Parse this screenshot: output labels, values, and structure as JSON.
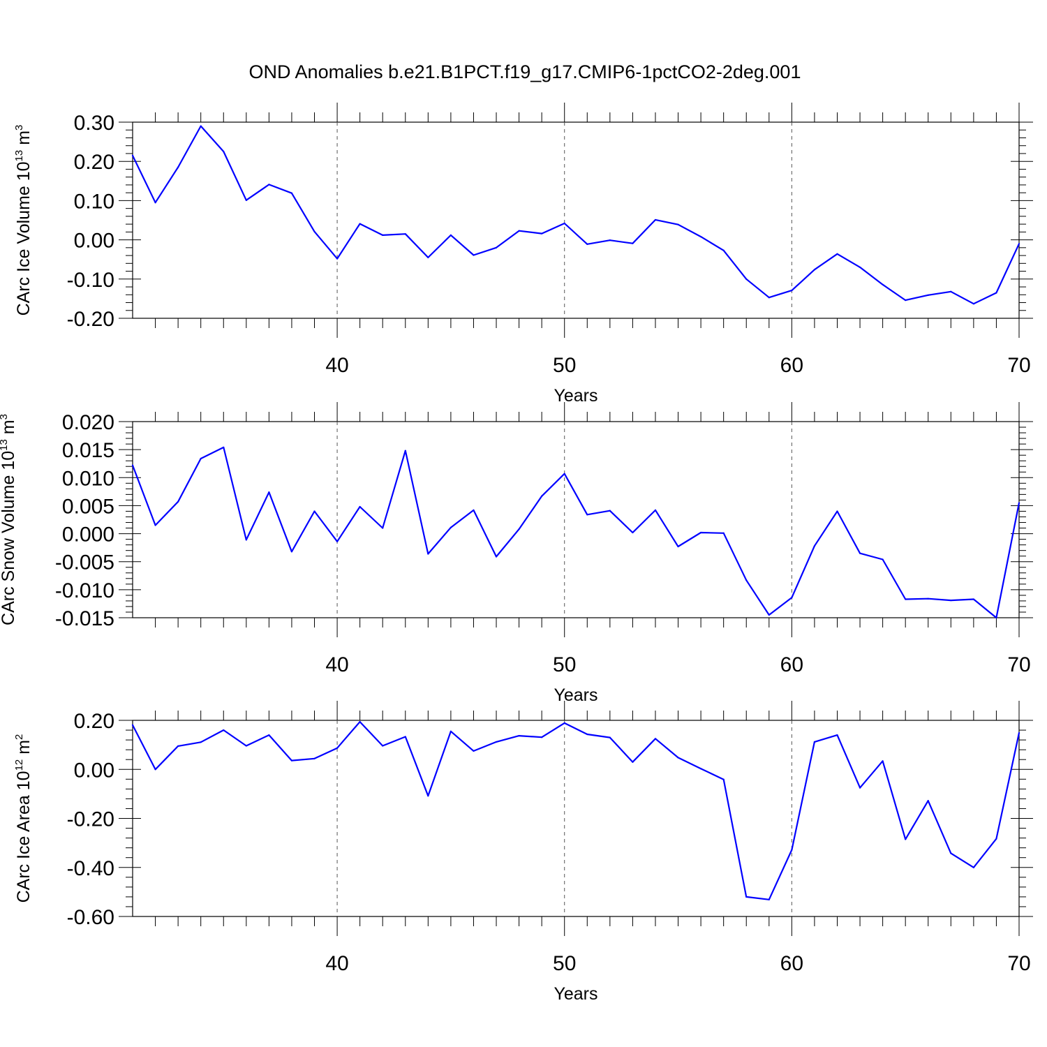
{
  "title": "OND Anomalies b.e21.B1PCT.f19_g17.CMIP6-1pctCO2-2deg.001",
  "line_color": "#0000ff",
  "chart_data": [
    {
      "type": "line",
      "ylabel": "CArc Ice Volume",
      "ylabel_unit": "10",
      "ylabel_exp1": "13",
      "ylabel_unit2": " m",
      "ylabel_exp2": "3",
      "xlabel": "Years",
      "xlim": [
        31,
        70
      ],
      "ylim": [
        -0.2,
        0.3
      ],
      "yticks": [
        -0.2,
        -0.1,
        0.0,
        0.1,
        0.2,
        0.3
      ],
      "ytick_labels": [
        "-0.20",
        "-0.10",
        "0.00",
        "0.10",
        "0.20",
        "0.30"
      ],
      "xticks": [
        40,
        50,
        60,
        70
      ],
      "xtick_labels": [
        "40",
        "50",
        "60",
        "70"
      ],
      "x": [
        31,
        32,
        33,
        34,
        35,
        36,
        37,
        38,
        39,
        40,
        41,
        42,
        43,
        44,
        45,
        46,
        47,
        48,
        49,
        50,
        51,
        52,
        53,
        54,
        55,
        56,
        57,
        58,
        59,
        60,
        61,
        62,
        63,
        64,
        65,
        66,
        67,
        68,
        69,
        70
      ],
      "values": [
        0.215,
        0.095,
        0.185,
        0.29,
        0.225,
        0.101,
        0.141,
        0.119,
        0.021,
        -0.048,
        0.041,
        0.012,
        0.015,
        -0.045,
        0.012,
        -0.039,
        -0.02,
        0.023,
        0.016,
        0.042,
        -0.011,
        -0.001,
        -0.009,
        0.051,
        0.039,
        0.008,
        -0.027,
        -0.1,
        -0.147,
        -0.129,
        -0.076,
        -0.036,
        -0.07,
        -0.114,
        -0.154,
        -0.141,
        -0.132,
        -0.163,
        -0.135,
        -0.01
      ]
    },
    {
      "type": "line",
      "ylabel": "CArc Snow Volume",
      "ylabel_unit": "10",
      "ylabel_exp1": "13",
      "ylabel_unit2": " m",
      "ylabel_exp2": "3",
      "xlabel": "Years",
      "xlim": [
        31,
        70
      ],
      "ylim": [
        -0.015,
        0.02
      ],
      "yticks": [
        -0.015,
        -0.01,
        -0.005,
        0.0,
        0.005,
        0.01,
        0.015,
        0.02
      ],
      "ytick_labels": [
        "-0.015",
        "-0.010",
        "-0.005",
        "0.000",
        "0.005",
        "0.010",
        "0.015",
        "0.020"
      ],
      "xticks": [
        40,
        50,
        60,
        70
      ],
      "xtick_labels": [
        "40",
        "50",
        "60",
        "70"
      ],
      "x": [
        31,
        32,
        33,
        34,
        35,
        36,
        37,
        38,
        39,
        40,
        41,
        42,
        43,
        44,
        45,
        46,
        47,
        48,
        49,
        50,
        51,
        52,
        53,
        54,
        55,
        56,
        57,
        58,
        59,
        60,
        61,
        62,
        63,
        64,
        65,
        66,
        67,
        68,
        69,
        70
      ],
      "values": [
        0.0122,
        0.0015,
        0.0057,
        0.0134,
        0.0154,
        -0.0011,
        0.0074,
        -0.0032,
        0.004,
        -0.0014,
        0.0048,
        0.001,
        0.0148,
        -0.0036,
        0.0011,
        0.0042,
        -0.0041,
        0.0008,
        0.0067,
        0.0107,
        0.0034,
        0.0041,
        0.0002,
        0.0042,
        -0.0023,
        0.0002,
        0.0001,
        -0.0083,
        -0.0145,
        -0.0114,
        -0.0022,
        0.004,
        -0.0035,
        -0.0046,
        -0.0117,
        -0.0116,
        -0.0119,
        -0.0117,
        -0.015,
        0.0055
      ]
    },
    {
      "type": "line",
      "ylabel": "CArc Ice Area",
      "ylabel_unit": "10",
      "ylabel_exp1": "12",
      "ylabel_unit2": " m",
      "ylabel_exp2": "2",
      "xlabel": "Years",
      "xlim": [
        31,
        70
      ],
      "ylim": [
        -0.6,
        0.2
      ],
      "yticks": [
        -0.6,
        -0.4,
        -0.2,
        0.0,
        0.2
      ],
      "ytick_labels": [
        "-0.60",
        "-0.40",
        "-0.20",
        "0.00",
        "0.20"
      ],
      "xticks": [
        40,
        50,
        60,
        70
      ],
      "xtick_labels": [
        "40",
        "50",
        "60",
        "70"
      ],
      "x": [
        31,
        32,
        33,
        34,
        35,
        36,
        37,
        38,
        39,
        40,
        41,
        42,
        43,
        44,
        45,
        46,
        47,
        48,
        49,
        50,
        51,
        52,
        53,
        54,
        55,
        56,
        57,
        58,
        59,
        60,
        61,
        62,
        63,
        64,
        65,
        66,
        67,
        68,
        69,
        70
      ],
      "values": [
        0.181,
        0.0,
        0.095,
        0.111,
        0.16,
        0.096,
        0.14,
        0.036,
        0.044,
        0.087,
        0.194,
        0.096,
        0.133,
        -0.108,
        0.155,
        0.075,
        0.112,
        0.137,
        0.131,
        0.189,
        0.143,
        0.13,
        0.03,
        0.125,
        0.048,
        0.003,
        -0.041,
        -0.52,
        -0.531,
        -0.328,
        0.112,
        0.14,
        -0.075,
        0.034,
        -0.285,
        -0.128,
        -0.342,
        -0.4,
        -0.283,
        0.149
      ]
    }
  ]
}
